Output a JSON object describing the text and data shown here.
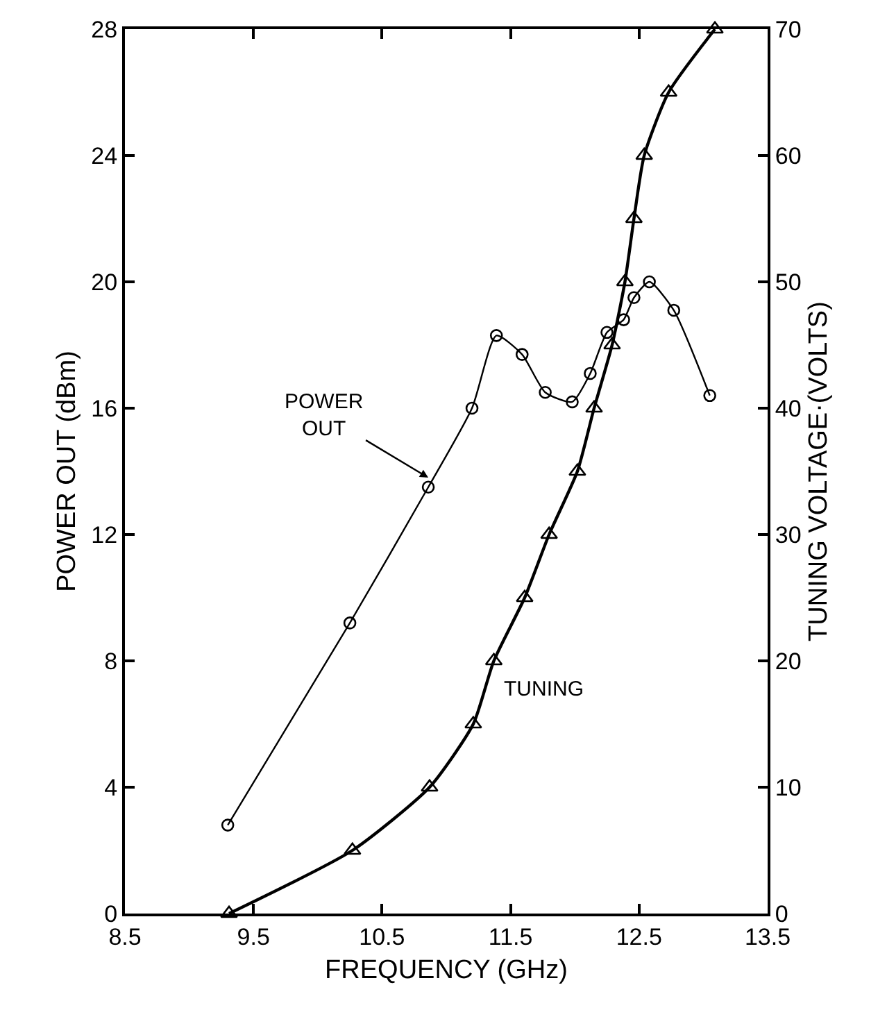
{
  "chart_data": {
    "type": "line",
    "xlabel": "FREQUENCY (GHz)",
    "ylabel": "POWER OUT (dBm)",
    "y2label": "TUNING VOLTAGE·(VOLTS)",
    "xlim": [
      8.5,
      13.5
    ],
    "xticks": [
      8.5,
      9.5,
      10.5,
      11.5,
      12.5,
      13.5
    ],
    "ylim": [
      0,
      28
    ],
    "yticks": [
      0,
      4,
      8,
      12,
      16,
      20,
      24,
      28
    ],
    "y2lim": [
      0,
      70
    ],
    "y2ticks": [
      0,
      10,
      20,
      30,
      40,
      50,
      60,
      70
    ],
    "series": [
      {
        "name": "POWER OUT",
        "color": "#000000",
        "marker": "circle",
        "x": [
          9.3,
          10.25,
          10.86,
          11.2,
          11.39,
          11.59,
          11.77,
          11.98,
          12.12,
          12.25,
          12.38,
          12.46,
          12.58,
          12.77,
          13.05
        ],
        "values": [
          2.8,
          9.2,
          13.5,
          16.0,
          18.3,
          17.7,
          16.5,
          16.2,
          17.1,
          18.4,
          18.8,
          19.5,
          20.0,
          19.1,
          16.4
        ]
      },
      {
        "name": "TUNING",
        "color": "#000000",
        "marker": "triangle",
        "axis": "y2",
        "x": [
          9.31,
          10.27,
          10.87,
          11.21,
          11.37,
          11.61,
          11.8,
          12.02,
          12.15,
          12.29,
          12.39,
          12.46,
          12.54,
          12.73,
          13.09
        ],
        "values": [
          0,
          5,
          10,
          15,
          20,
          25,
          30,
          35,
          40,
          45,
          50,
          55,
          60,
          65,
          70
        ]
      }
    ]
  }
}
